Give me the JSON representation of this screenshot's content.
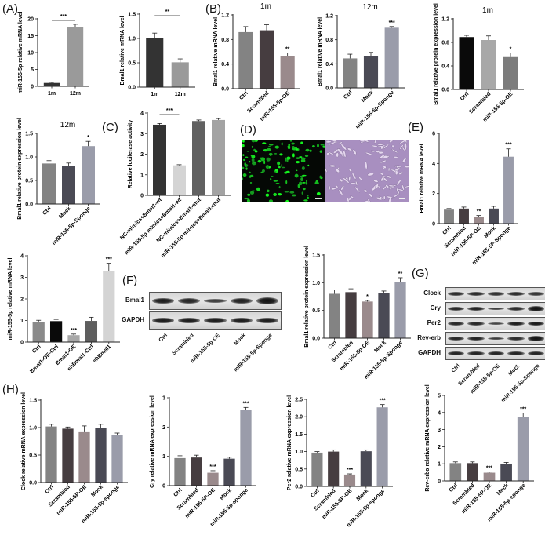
{
  "panel_labels": {
    "A": "(A)",
    "B": "(B)",
    "C": "(C)",
    "D": "(D)",
    "E": "(E)",
    "F": "(F)",
    "G": "(G)",
    "H": "(H)"
  },
  "chart_data": [
    {
      "id": "A1",
      "panel": "A",
      "type": "bar",
      "title": "",
      "ylabel": "miR-155-5p relative mRNA level",
      "xlabel": "",
      "categories": [
        "1m",
        "12m"
      ],
      "values": [
        1.0,
        17.5
      ],
      "errors": [
        0.2,
        0.9
      ],
      "ylim": [
        0,
        20
      ],
      "yticks": [
        0,
        5,
        10,
        15,
        20
      ],
      "colors": [
        "#333333",
        "#9a9a9a"
      ],
      "significance": [
        {
          "from": 0,
          "to": 1,
          "label": "***"
        }
      ]
    },
    {
      "id": "A2",
      "panel": "A",
      "type": "bar",
      "title": "",
      "ylabel": "Bmal1 relative mRNA level",
      "xlabel": "",
      "categories": [
        "1m",
        "12m"
      ],
      "values": [
        1.0,
        0.51
      ],
      "errors": [
        0.11,
        0.07
      ],
      "ylim": [
        0,
        1.5
      ],
      "yticks": [
        0.0,
        0.5,
        1.0,
        1.5
      ],
      "colors": [
        "#333333",
        "#9a9a9a"
      ],
      "significance": [
        {
          "from": 0,
          "to": 1,
          "label": "**"
        }
      ]
    },
    {
      "id": "B1",
      "panel": "B",
      "type": "bar",
      "title": "1m",
      "ylabel": "Bmal1 relative mRNA level",
      "xlabel": "",
      "categories": [
        "Ctrl",
        "Scrambled",
        "miR-155-5p-OE"
      ],
      "values": [
        0.92,
        0.95,
        0.53
      ],
      "errors": [
        0.09,
        0.09,
        0.05
      ],
      "ylim": [
        0,
        1.2
      ],
      "yticks": [
        0.0,
        0.4,
        0.8,
        1.2
      ],
      "colors": [
        "#838383",
        "#463d40",
        "#9a8a8c"
      ],
      "annotations": [
        "",
        "",
        "**"
      ]
    },
    {
      "id": "B2",
      "panel": "B",
      "type": "bar",
      "title": "12m",
      "ylabel": "Bmal1 relative mRNA level",
      "xlabel": "",
      "categories": [
        "Ctrl",
        "Mock",
        "miR-155-5p-Sponge"
      ],
      "values": [
        0.49,
        0.53,
        1.0
      ],
      "errors": [
        0.07,
        0.06,
        0.02
      ],
      "ylim": [
        0,
        1.2
      ],
      "yticks": [
        0.0,
        0.4,
        0.8,
        1.2
      ],
      "colors": [
        "#838383",
        "#4a4a55",
        "#9a9caa"
      ],
      "annotations": [
        "",
        "",
        "***"
      ]
    },
    {
      "id": "B3",
      "panel": "B",
      "type": "bar",
      "title": "1m",
      "ylabel": "Bmal1 relative protein expression level",
      "xlabel": "",
      "categories": [
        "Ctrl",
        "Scrambled",
        "miR-155-5p-OE"
      ],
      "values": [
        0.89,
        0.84,
        0.55
      ],
      "errors": [
        0.03,
        0.07,
        0.07
      ],
      "ylim": [
        0,
        1.2
      ],
      "yticks": [
        0.0,
        0.4,
        0.8,
        1.2
      ],
      "colors": [
        "#0a0a0a",
        "#a8a8a8",
        "#7c7c7c"
      ],
      "annotations": [
        "",
        "",
        "*"
      ]
    },
    {
      "id": "B4",
      "panel": "B",
      "type": "bar",
      "title": "12m",
      "ylabel": "Bmal1 relative protein expression level",
      "xlabel": "",
      "categories": [
        "Ctrl",
        "Mock",
        "miR-155-5p-Sponge"
      ],
      "values": [
        0.86,
        0.81,
        1.23
      ],
      "errors": [
        0.06,
        0.06,
        0.1
      ],
      "ylim": [
        0,
        1.5
      ],
      "yticks": [
        0.0,
        0.5,
        1.0,
        1.5
      ],
      "colors": [
        "#838383",
        "#4a4a55",
        "#9a9caa"
      ],
      "annotations": [
        "",
        "",
        "*"
      ]
    },
    {
      "id": "C",
      "panel": "C",
      "type": "bar",
      "title": "",
      "ylabel": "Relative luciferase activity",
      "xlabel": "",
      "categories": [
        "NC-mimics+Bmal1-wt",
        "miR-155-5p mimics+Bmal1-wt",
        "NC-mimics+Bmal1-mut",
        "miR-155-5p mimics+Bmal1-mut"
      ],
      "values": [
        3.43,
        1.46,
        3.61,
        3.66
      ],
      "errors": [
        0.06,
        0.03,
        0.05,
        0.07
      ],
      "ylim": [
        0,
        4
      ],
      "yticks": [
        0,
        1,
        2,
        3,
        4
      ],
      "colors": [
        "#333333",
        "#d4d4d4",
        "#616161",
        "#a3a3a3"
      ],
      "significance": [
        {
          "from": 0,
          "to": 1,
          "label": "***"
        }
      ]
    },
    {
      "id": "E",
      "panel": "E",
      "type": "bar",
      "title": "",
      "ylabel": "Bmal1 relative mRNA level",
      "xlabel": "",
      "categories": [
        "Ctrl",
        "Scrambled",
        "miR-155-5P-OE",
        "Mock",
        "miR-155-5P-Sponge"
      ],
      "values": [
        0.93,
        1.0,
        0.46,
        1.0,
        4.45
      ],
      "errors": [
        0.07,
        0.1,
        0.08,
        0.15,
        0.52
      ],
      "ylim": [
        0,
        6
      ],
      "yticks": [
        0,
        2,
        4,
        6
      ],
      "colors": [
        "#838383",
        "#463d40",
        "#9a8a8c",
        "#4a4a55",
        "#9a9caa"
      ],
      "annotations": [
        "",
        "",
        "**",
        "",
        "***"
      ]
    },
    {
      "id": "E2",
      "panel": "E",
      "type": "bar",
      "title": "",
      "ylabel": "miR-155-5p relative mRNA level",
      "xlabel": "",
      "categories": [
        "Ctrl",
        "Bmal1-OE-Ctrl",
        "Bmal1-OE",
        "shBmal1-Ctrl",
        "shBmal1"
      ],
      "values": [
        0.94,
        0.97,
        0.32,
        0.98,
        3.28
      ],
      "errors": [
        0.07,
        0.08,
        0.05,
        0.17,
        0.37
      ],
      "ylim": [
        0,
        4
      ],
      "yticks": [
        0,
        1,
        2,
        3,
        4
      ],
      "colors": [
        "#8a8a8a",
        "#0a0a0a",
        "#a8a8a8",
        "#5e5e5e",
        "#d4d4d4"
      ],
      "annotations": [
        "",
        "",
        "***",
        "",
        "***"
      ]
    },
    {
      "id": "F2",
      "panel": "F",
      "type": "bar",
      "title": "",
      "ylabel": "Bmal1 relative protein expression level",
      "xlabel": "",
      "categories": [
        "Ctrl",
        "Scrambled",
        "miR-155-5p-OE",
        "Mock",
        "miR-155-5p-Sponge"
      ],
      "values": [
        0.8,
        0.83,
        0.66,
        0.81,
        1.01
      ],
      "errors": [
        0.07,
        0.06,
        0.02,
        0.04,
        0.08
      ],
      "ylim": [
        0,
        1.5
      ],
      "yticks": [
        0.0,
        0.5,
        1.0,
        1.5
      ],
      "colors": [
        "#838383",
        "#463d40",
        "#9a8a8c",
        "#4a4a55",
        "#9a9caa"
      ],
      "annotations": [
        "",
        "",
        "*",
        "",
        "**"
      ]
    },
    {
      "id": "H1",
      "panel": "H",
      "type": "bar",
      "title": "",
      "ylabel": "Clock relative mRNA expression level",
      "xlabel": "",
      "categories": [
        "Ctrl",
        "Scrambled",
        "miR-155-5P-OE",
        "Mock",
        "miR-155-5p-sponge"
      ],
      "values": [
        1.02,
        0.98,
        0.93,
        0.99,
        0.87
      ],
      "errors": [
        0.04,
        0.03,
        0.1,
        0.07,
        0.03
      ],
      "ylim": [
        0,
        1.5
      ],
      "yticks": [
        0.0,
        0.5,
        1.0,
        1.5
      ],
      "colors": [
        "#838383",
        "#463d40",
        "#9a8a8c",
        "#4a4a55",
        "#9a9caa"
      ],
      "annotations": [
        "",
        "",
        "",
        "",
        ""
      ]
    },
    {
      "id": "H2",
      "panel": "H",
      "type": "bar",
      "title": "",
      "ylabel": "Cry relative mRNA expression level",
      "xlabel": "",
      "categories": [
        "Ctrl",
        "Scrambled",
        "miR-155-5P-OE",
        "Mock",
        "miR-155-5p-sponge"
      ],
      "values": [
        0.94,
        0.96,
        0.44,
        0.92,
        2.58
      ],
      "errors": [
        0.08,
        0.08,
        0.07,
        0.05,
        0.09
      ],
      "ylim": [
        0,
        3
      ],
      "yticks": [
        0,
        1,
        2,
        3
      ],
      "colors": [
        "#838383",
        "#463d40",
        "#9a8a8c",
        "#4a4a55",
        "#9a9caa"
      ],
      "annotations": [
        "",
        "",
        "***",
        "",
        "***"
      ]
    },
    {
      "id": "H3",
      "panel": "H",
      "type": "bar",
      "title": "",
      "ylabel": "Per2 relative mRNA expression level",
      "xlabel": "",
      "categories": [
        "Ctrl",
        "Scrambled",
        "miR-155-5P-OE",
        "Mock",
        "miR-155-5p-sponge"
      ],
      "values": [
        0.97,
        1.0,
        0.34,
        1.01,
        2.27
      ],
      "errors": [
        0.03,
        0.05,
        0.02,
        0.04,
        0.08
      ],
      "ylim": [
        0,
        2.5
      ],
      "yticks": [
        0.0,
        0.5,
        1.0,
        1.5,
        2.0,
        2.5
      ],
      "colors": [
        "#838383",
        "#463d40",
        "#9a8a8c",
        "#4a4a55",
        "#9a9caa"
      ],
      "annotations": [
        "",
        "",
        "***",
        "",
        "***"
      ]
    },
    {
      "id": "H4",
      "panel": "H",
      "type": "bar",
      "title": "",
      "ylabel": "Rev-erbα relative mRNA expression level",
      "xlabel": "",
      "categories": [
        "Ctrl",
        "Scrambled",
        "miR-155-5P-OE",
        "Mock",
        "miR-155-5p-sponge"
      ],
      "values": [
        1.04,
        1.04,
        0.48,
        1.01,
        3.75
      ],
      "errors": [
        0.07,
        0.07,
        0.04,
        0.07,
        0.22
      ],
      "ylim": [
        0,
        5
      ],
      "yticks": [
        0,
        1,
        2,
        3,
        4,
        5
      ],
      "colors": [
        "#838383",
        "#463d40",
        "#9a8a8c",
        "#4a4a55",
        "#9a9caa"
      ],
      "annotations": [
        "",
        "",
        "***",
        "",
        "***"
      ]
    }
  ],
  "blot_F": {
    "rows": [
      "Bmal1",
      "GAPDH"
    ],
    "lanes": [
      "Ctrl",
      "Scrambled",
      "miR-155-5p-OE",
      "Mock",
      "miR-155-5p-Sponge"
    ],
    "intensity": [
      [
        0.9,
        0.8,
        0.55,
        0.85,
        1.0
      ],
      [
        0.9,
        0.9,
        0.9,
        0.9,
        0.9
      ]
    ]
  },
  "blot_G": {
    "rows": [
      "Clock",
      "Cry",
      "Per2",
      "Rev-erb",
      "GAPDH"
    ],
    "lanes": [
      "Ctrl",
      "Scrambled",
      "miR-155-5p-OE",
      "Mock",
      "miR-155-5p-Sponge"
    ],
    "intensity": [
      [
        0.75,
        0.75,
        0.7,
        0.75,
        0.65
      ],
      [
        0.8,
        0.85,
        0.55,
        0.75,
        1.0
      ],
      [
        0.8,
        0.8,
        0.5,
        0.9,
        0.95
      ],
      [
        0.8,
        0.85,
        0.6,
        0.75,
        1.0
      ],
      [
        0.85,
        0.85,
        0.85,
        0.85,
        0.85
      ]
    ]
  },
  "micrographs_D": {
    "left": "fluorescence (green cells)",
    "right": "brightfield (cells)"
  }
}
